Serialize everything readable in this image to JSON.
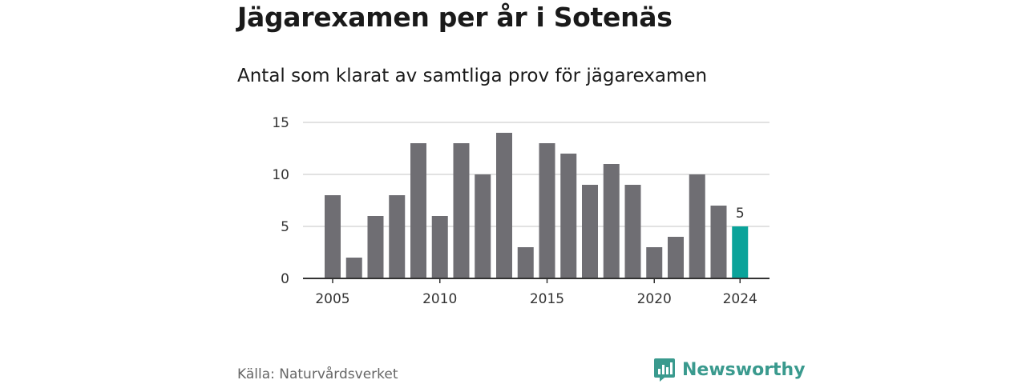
{
  "header": {
    "title": "Jägarexamen per år i Sotenäs",
    "subtitle": "Antal som klarat av samtliga prov för jägarexamen"
  },
  "footer": {
    "source": "Källa: Naturvårdsverket",
    "brand": "Newsworthy"
  },
  "colors": {
    "bar": "#6f6e73",
    "highlight": "#0aa39a",
    "grid": "#d9d9d9",
    "axis": "#333333",
    "brand": "#3a9a8e"
  },
  "chart_data": {
    "type": "bar",
    "x": [
      2005,
      2006,
      2007,
      2008,
      2009,
      2010,
      2011,
      2012,
      2013,
      2014,
      2015,
      2016,
      2017,
      2018,
      2019,
      2020,
      2021,
      2022,
      2023,
      2024
    ],
    "values": [
      8,
      2,
      6,
      8,
      13,
      6,
      13,
      10,
      14,
      3,
      13,
      12,
      9,
      11,
      9,
      3,
      4,
      10,
      7,
      5
    ],
    "ylim": [
      0,
      15
    ],
    "yticks": [
      0,
      5,
      10,
      15
    ],
    "xticks": [
      2005,
      2010,
      2015,
      2020,
      2024
    ],
    "highlight_year": 2024,
    "highlight_label": "5",
    "grid": true
  }
}
